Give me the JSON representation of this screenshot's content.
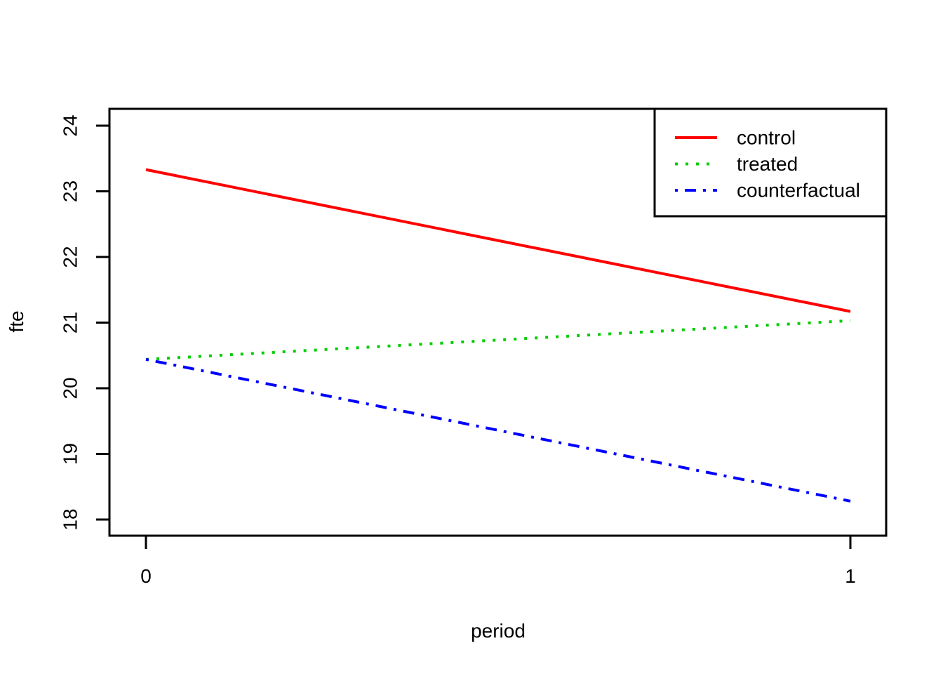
{
  "chart_data": {
    "type": "line",
    "title": "",
    "xlabel": "period",
    "ylabel": "fte",
    "x": [
      0,
      1
    ],
    "xlim": [
      0,
      1
    ],
    "ylim": [
      17.75,
      24.25
    ],
    "x_ticks": [
      0,
      1
    ],
    "y_ticks": [
      18,
      19,
      20,
      21,
      22,
      23,
      24
    ],
    "grid": false,
    "legend_position": "top-right",
    "series": [
      {
        "name": "control",
        "values": [
          23.33,
          21.17
        ],
        "color": "#ff0000",
        "linestyle": "solid"
      },
      {
        "name": "treated",
        "values": [
          20.44,
          21.03
        ],
        "color": "#00cd00",
        "linestyle": "dotted"
      },
      {
        "name": "counterfactual",
        "values": [
          20.44,
          18.28
        ],
        "color": "#0000ff",
        "linestyle": "dotdash"
      }
    ]
  },
  "colors": {
    "axis": "#000000",
    "text": "#000000",
    "background": "#ffffff"
  }
}
